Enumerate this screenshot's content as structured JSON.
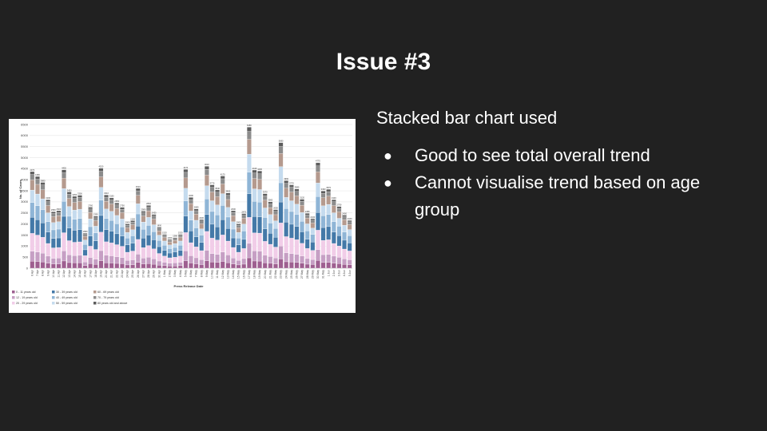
{
  "slide": {
    "title": "Issue #3",
    "subheading": "Stacked bar chart used",
    "bullets": [
      "Good to see total overall trend",
      "Cannot visualise trend based on age group"
    ]
  },
  "chart_data": {
    "type": "bar",
    "stacked": true,
    "xlabel": "Press Release Date",
    "ylabel": "No. of Cases",
    "ylim": [
      0,
      6500
    ],
    "yticks": [
      0,
      500,
      1000,
      1500,
      2000,
      2500,
      3000,
      3500,
      4000,
      4500,
      5000,
      5500,
      6000,
      6500
    ],
    "grid": true,
    "legend_position": "bottom",
    "categories": [
      "6 Apr",
      "7 Apr",
      "8 Apr",
      "9 Apr",
      "10 Apr",
      "11 Apr",
      "12 Apr",
      "13 Apr",
      "14 Apr",
      "15 Apr",
      "16 Apr",
      "17 Apr",
      "18 Apr",
      "19 Apr",
      "20 Apr",
      "21 Apr",
      "22 Apr",
      "23 Apr",
      "24 Apr",
      "25 Apr",
      "26 Apr",
      "27 Apr",
      "28 Apr",
      "29 Apr",
      "30 Apr",
      "1 May",
      "2 May",
      "3 May",
      "4 May",
      "5 May",
      "6 May",
      "7 May",
      "8 May",
      "9 May",
      "10 May",
      "11 May",
      "12 May",
      "13 May",
      "14 May",
      "15 May",
      "16 May",
      "17 May",
      "18 May",
      "19 May",
      "20 May",
      "21 May",
      "22 May",
      "23 May",
      "24 May",
      "25 May",
      "26 May",
      "27 May",
      "28 May",
      "29 May",
      "30 May",
      "31 May",
      "1 Jun",
      "2 Jun",
      "3 Jun",
      "4 Jun",
      "5 Jun"
    ],
    "totals": [
      4370,
      4150,
      3880,
      3100,
      2550,
      2600,
      4450,
      3450,
      3250,
      3300,
      1580,
      2760,
      2350,
      4520,
      3310,
      3180,
      2950,
      2750,
      2000,
      2150,
      3610,
      2580,
      2840,
      2430,
      1850,
      1520,
      1300,
      1380,
      1520,
      4470,
      3200,
      2680,
      2200,
      4610,
      3770,
      3540,
      4170,
      3400,
      2600,
      2000,
      2470,
      6380,
      4440,
      4400,
      3370,
      3000,
      2650,
      5680,
      3960,
      3770,
      3580,
      3120,
      2480,
      2240,
      4770,
      3490,
      3570,
      3100,
      2790,
      2400,
      2160
    ],
    "series": [
      {
        "name": "0 - 11 years old",
        "color": "#9e5f90",
        "values": [
          320,
          305,
          285,
          228,
          187,
          191,
          327,
          254,
          239,
          243,
          116,
          203,
          173,
          332,
          243,
          234,
          217,
          202,
          147,
          158,
          265,
          190,
          209,
          179,
          136,
          112,
          96,
          101,
          112,
          329,
          235,
          197,
          162,
          339,
          277,
          260,
          306,
          250,
          191,
          147,
          182,
          469,
          326,
          323,
          248,
          220,
          195,
          417,
          291,
          277,
          263,
          229,
          182,
          165,
          350,
          256,
          262,
          228,
          205,
          176,
          159
        ]
      },
      {
        "name": "12 - 19 years old",
        "color": "#c69fc4",
        "values": [
          447,
          425,
          397,
          317,
          261,
          266,
          455,
          353,
          333,
          338,
          162,
          282,
          240,
          463,
          339,
          325,
          302,
          281,
          205,
          220,
          369,
          264,
          291,
          249,
          189,
          156,
          133,
          141,
          156,
          457,
          327,
          274,
          225,
          472,
          386,
          362,
          427,
          348,
          266,
          205,
          253,
          653,
          454,
          450,
          345,
          307,
          271,
          581,
          405,
          386,
          366,
          319,
          254,
          229,
          488,
          357,
          365,
          317,
          285,
          246,
          221
        ]
      },
      {
        "name": "20 - 29 years old",
        "color": "#f1cde8",
        "values": [
          809,
          768,
          718,
          574,
          472,
          481,
          824,
          639,
          602,
          611,
          292,
          511,
          435,
          837,
          613,
          588,
          546,
          509,
          370,
          398,
          668,
          478,
          526,
          450,
          342,
          281,
          241,
          255,
          281,
          827,
          592,
          496,
          407,
          853,
          698,
          655,
          772,
          629,
          481,
          370,
          457,
          1180,
          821,
          814,
          623,
          555,
          490,
          1051,
          733,
          697,
          662,
          577,
          459,
          414,
          882,
          646,
          660,
          574,
          516,
          444,
          400
        ]
      },
      {
        "name": "30 - 39 years old",
        "color": "#4479a8",
        "values": [
          728,
          691,
          646,
          516,
          425,
          433,
          741,
          575,
          541,
          549,
          263,
          460,
          391,
          753,
          551,
          529,
          491,
          458,
          333,
          358,
          601,
          430,
          473,
          405,
          308,
          253,
          216,
          230,
          253,
          744,
          533,
          446,
          366,
          768,
          628,
          589,
          694,
          566,
          433,
          333,
          411,
          1062,
          739,
          733,
          561,
          500,
          441,
          946,
          659,
          628,
          596,
          519,
          413,
          373,
          794,
          581,
          594,
          516,
          465,
          400,
          360
        ]
      },
      {
        "name": "40 - 49 years old",
        "color": "#8fb5d6",
        "values": [
          669,
          635,
          594,
          474,
          390,
          398,
          681,
          528,
          497,
          505,
          242,
          422,
          360,
          692,
          506,
          487,
          451,
          421,
          306,
          329,
          552,
          395,
          435,
          372,
          283,
          233,
          199,
          211,
          233,
          684,
          490,
          410,
          337,
          705,
          577,
          542,
          638,
          520,
          398,
          306,
          378,
          976,
          679,
          673,
          516,
          459,
          405,
          869,
          606,
          577,
          548,
          477,
          379,
          343,
          730,
          534,
          546,
          474,
          427,
          367,
          330
        ]
      },
      {
        "name": "50 - 59 years old",
        "color": "#c5dbee",
        "values": [
          562,
          533,
          499,
          398,
          328,
          334,
          572,
          444,
          418,
          424,
          203,
          355,
          302,
          581,
          426,
          409,
          379,
          354,
          257,
          276,
          464,
          332,
          365,
          312,
          238,
          195,
          167,
          177,
          195,
          574,
          411,
          345,
          283,
          593,
          485,
          455,
          536,
          437,
          334,
          257,
          318,
          820,
          571,
          566,
          433,
          386,
          341,
          730,
          509,
          485,
          460,
          401,
          319,
          288,
          613,
          449,
          459,
          399,
          359,
          309,
          278
        ]
      },
      {
        "name": "60 - 69 years old",
        "color": "#b59a8e",
        "values": [
          459,
          436,
          407,
          326,
          268,
          273,
          467,
          362,
          341,
          347,
          166,
          290,
          247,
          475,
          348,
          334,
          310,
          289,
          210,
          226,
          379,
          271,
          298,
          255,
          194,
          160,
          137,
          145,
          160,
          469,
          336,
          281,
          231,
          484,
          396,
          372,
          438,
          357,
          273,
          210,
          259,
          670,
          466,
          462,
          354,
          315,
          278,
          596,
          416,
          396,
          376,
          328,
          260,
          235,
          501,
          366,
          375,
          326,
          293,
          252,
          227
        ]
      },
      {
        "name": "70 - 79 years old",
        "color": "#8c8c8c",
        "values": [
          246,
          234,
          219,
          175,
          144,
          146,
          251,
          195,
          183,
          186,
          89,
          156,
          132,
          255,
          187,
          179,
          166,
          155,
          113,
          121,
          204,
          146,
          160,
          137,
          104,
          86,
          73,
          78,
          86,
          252,
          181,
          151,
          124,
          260,
          213,
          200,
          235,
          192,
          147,
          113,
          139,
          360,
          250,
          248,
          190,
          169,
          150,
          320,
          223,
          213,
          202,
          176,
          140,
          126,
          269,
          197,
          201,
          175,
          157,
          135,
          122
        ]
      },
      {
        "name": "80 years old and above",
        "color": "#5c5c5c",
        "values": [
          130,
          123,
          115,
          92,
          75,
          78,
          132,
          100,
          96,
          97,
          47,
          81,
          70,
          132,
          98,
          95,
          88,
          81,
          59,
          64,
          108,
          74,
          83,
          71,
          56,
          44,
          38,
          42,
          44,
          134,
          95,
          80,
          65,
          136,
          110,
          106,
          124,
          101,
          77,
          59,
          73,
          190,
          134,
          131,
          100,
          89,
          79,
          170,
          118,
          111,
          107,
          94,
          74,
          67,
          143,
          104,
          108,
          91,
          83,
          71,
          64
        ]
      }
    ]
  }
}
